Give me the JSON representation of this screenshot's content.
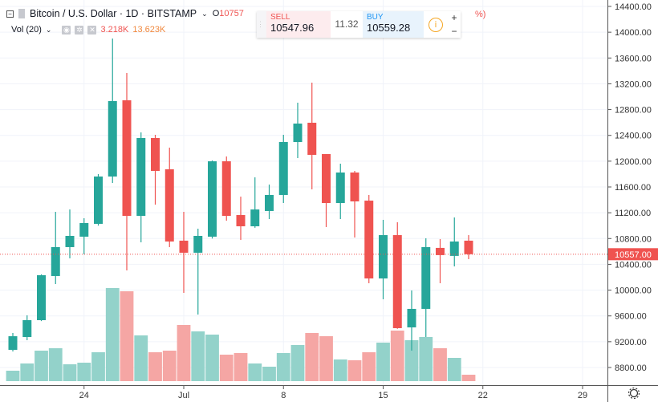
{
  "header": {
    "symbol": "Bitcoin / U.S. Dollar · 1D · BITSTAMP",
    "ohlc_open": "O10757",
    "pct_fragment": "%)",
    "vol_label": "Vol (20)",
    "vol_value": "3.218K",
    "vol_ma": "13.623K"
  },
  "trade": {
    "sell_label": "SELL",
    "sell_price": "10547.96",
    "spread": "11.32",
    "buy_label": "BUY",
    "buy_price": "10559.28",
    "plus": "+",
    "minus": "−"
  },
  "colors": {
    "up": "#26a69a",
    "down": "#ef5350",
    "up_vol": "#93d2ca",
    "down_vol": "#f5a6a4",
    "last_price": "#ef5350"
  },
  "chart_data": {
    "type": "candlestick",
    "ylim": [
      8800,
      14400
    ],
    "yticks": [
      "14400.00",
      "14000.00",
      "13600.00",
      "13200.00",
      "12800.00",
      "12400.00",
      "12000.00",
      "11600.00",
      "11200.00",
      "10800.00",
      "10400.00",
      "10000.00",
      "9600.00",
      "9200.00",
      "8800.00"
    ],
    "xticks": [
      {
        "label": "24",
        "date": "2019-06-24"
      },
      {
        "label": "Jul",
        "date": "2019-07-01"
      },
      {
        "label": "8",
        "date": "2019-07-08"
      },
      {
        "label": "15",
        "date": "2019-07-15"
      },
      {
        "label": "22",
        "date": "2019-07-22"
      },
      {
        "label": "29",
        "date": "2019-07-29"
      }
    ],
    "last_price": "10557.00",
    "dates": [
      "2019-06-19",
      "2019-06-20",
      "2019-06-21",
      "2019-06-22",
      "2019-06-23",
      "2019-06-24",
      "2019-06-25",
      "2019-06-26",
      "2019-06-27",
      "2019-06-28",
      "2019-06-29",
      "2019-06-30",
      "2019-07-01",
      "2019-07-02",
      "2019-07-03",
      "2019-07-04",
      "2019-07-05",
      "2019-07-06",
      "2019-07-07",
      "2019-07-08",
      "2019-07-09",
      "2019-07-10",
      "2019-07-11",
      "2019-07-12",
      "2019-07-13",
      "2019-07-14",
      "2019-07-15",
      "2019-07-16",
      "2019-07-17",
      "2019-07-18",
      "2019-07-19",
      "2019-07-20",
      "2019-07-21"
    ],
    "ohlc": [
      [
        9074,
        9335,
        9049,
        9285
      ],
      [
        9273,
        9609,
        9223,
        9534
      ],
      [
        9534,
        10244,
        9520,
        10231
      ],
      [
        10219,
        11214,
        10094,
        10667
      ],
      [
        10667,
        11251,
        10493,
        10841
      ],
      [
        10829,
        11115,
        10555,
        11040
      ],
      [
        11028,
        11799,
        11000,
        11762
      ],
      [
        11762,
        13902,
        11662,
        12932
      ],
      [
        12944,
        13367,
        10306,
        11152
      ],
      [
        11152,
        12446,
        10742,
        12359
      ],
      [
        12359,
        12409,
        11326,
        11849
      ],
      [
        11874,
        12210,
        10667,
        10754
      ],
      [
        10767,
        11214,
        9957,
        10580
      ],
      [
        10580,
        10953,
        9621,
        10841
      ],
      [
        10829,
        12011,
        10800,
        11998
      ],
      [
        11998,
        12073,
        11077,
        11152
      ],
      [
        11165,
        11450,
        10779,
        10990
      ],
      [
        10990,
        11749,
        10967,
        11251
      ],
      [
        11227,
        11637,
        11102,
        11476
      ],
      [
        11476,
        12409,
        11351,
        12297
      ],
      [
        12297,
        12907,
        12048,
        12583
      ],
      [
        12596,
        13218,
        11563,
        12098
      ],
      [
        12110,
        12110,
        10978,
        11351
      ],
      [
        11351,
        11961,
        11102,
        11824
      ],
      [
        11824,
        11849,
        10816,
        11376
      ],
      [
        11388,
        11476,
        10107,
        10181
      ],
      [
        10181,
        11090,
        9858,
        10853
      ],
      [
        10853,
        11052,
        9400,
        9410
      ],
      [
        9422,
        9995,
        9062,
        9709
      ],
      [
        9709,
        10804,
        9273,
        10667
      ],
      [
        10655,
        10791,
        10107,
        10543
      ],
      [
        10531,
        11127,
        10368,
        10754
      ],
      [
        10767,
        10853,
        10480,
        10557
      ]
    ],
    "volume_k": [
      5.2,
      8.8,
      15.2,
      16.4,
      8.4,
      9.2,
      14.4,
      46.4,
      44.8,
      22.8,
      14.4,
      15.2,
      28,
      24.8,
      23.2,
      13.2,
      14,
      8.8,
      7.2,
      14,
      18,
      24,
      22.4,
      10.8,
      10.4,
      14.4,
      19.2,
      25.2,
      20.4,
      22,
      16.4,
      11.6,
      3.2
    ]
  }
}
